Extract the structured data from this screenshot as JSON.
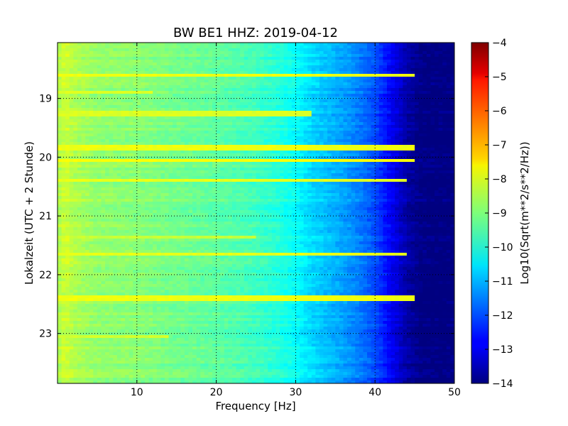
{
  "chart_data": {
    "type": "heatmap",
    "title": "BW BE1 HHZ: 2019-04-12",
    "xlabel": "Frequency [Hz]",
    "ylabel": "Lokalzeit (UTC + 2 Stunde)",
    "xlim": [
      0,
      50
    ],
    "ylim": [
      18.05,
      23.85
    ],
    "y_inverted": true,
    "x_ticks": [
      10,
      20,
      30,
      40,
      50
    ],
    "x_tick_labels": [
      "10",
      "20",
      "30",
      "40",
      "50"
    ],
    "y_ticks": [
      19,
      20,
      21,
      22,
      23
    ],
    "y_tick_labels": [
      "19",
      "20",
      "21",
      "22",
      "23"
    ],
    "grid": true,
    "colormap": "jet",
    "colorbar": {
      "label": "Log10(Sqrt(m**2/s**2/Hz))",
      "range": [
        -14,
        -4
      ],
      "ticks": [
        -4,
        -5,
        -6,
        -7,
        -8,
        -9,
        -10,
        -11,
        -12,
        -13,
        -14
      ],
      "tick_labels": [
        "−4",
        "−5",
        "−6",
        "−7",
        "−8",
        "−9",
        "−10",
        "−11",
        "−12",
        "−13",
        "−14"
      ]
    },
    "spectrum_profile_hz": [
      0,
      1,
      2,
      5,
      10,
      15,
      20,
      25,
      28,
      30,
      32,
      35,
      38,
      40,
      42,
      44,
      46,
      50
    ],
    "spectrum_profile_log10": [
      -8.6,
      -8.2,
      -8.5,
      -8.8,
      -8.9,
      -9.1,
      -9.3,
      -9.6,
      -9.9,
      -10.2,
      -10.6,
      -11.0,
      -11.5,
      -12.0,
      -12.8,
      -13.6,
      -14.0,
      -14.0
    ],
    "bright_bands": [
      {
        "time": 18.6,
        "f_max": 45,
        "log10": -7.9
      },
      {
        "time": 18.9,
        "f_max": 12,
        "log10": -8.1
      },
      {
        "time": 19.25,
        "f_max": 32,
        "log10": -8.1
      },
      {
        "time": 19.85,
        "f_max": 45,
        "log10": -7.9
      },
      {
        "time": 20.05,
        "f_max": 45,
        "log10": -7.8
      },
      {
        "time": 20.4,
        "f_max": 44,
        "log10": -8.0
      },
      {
        "time": 21.35,
        "f_max": 25,
        "log10": -8.3
      },
      {
        "time": 21.65,
        "f_max": 44,
        "log10": -8.0
      },
      {
        "time": 22.4,
        "f_max": 45,
        "log10": -7.9
      },
      {
        "time": 23.05,
        "f_max": 14,
        "log10": -8.2
      }
    ]
  }
}
